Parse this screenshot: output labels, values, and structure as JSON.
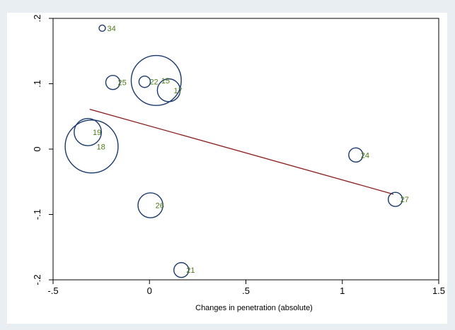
{
  "chart_data": {
    "type": "scatter",
    "title": "",
    "xlabel": "Changes in penetration (absolute)",
    "ylabel": "",
    "xlim": [
      -0.5,
      1.5
    ],
    "ylim": [
      -0.2,
      0.2
    ],
    "xticks": [
      {
        "value": -0.5,
        "label": "-.5"
      },
      {
        "value": 0,
        "label": "0"
      },
      {
        "value": 0.5,
        "label": ".5"
      },
      {
        "value": 1,
        "label": "1"
      },
      {
        "value": 1.5,
        "label": "1.5"
      }
    ],
    "yticks": [
      {
        "value": -0.2,
        "label": "-.2"
      },
      {
        "value": -0.1,
        "label": "-.1"
      },
      {
        "value": 0,
        "label": "0"
      },
      {
        "value": 0.1,
        "label": ".1"
      },
      {
        "value": 0.2,
        "label": ".2"
      }
    ],
    "grid": false,
    "marker_weight_note": "bubble size proportional to weight",
    "points": [
      {
        "label": "34",
        "x": -0.245,
        "y": 0.185,
        "size": 0.2
      },
      {
        "label": "25",
        "x": -0.19,
        "y": 0.102,
        "size": 1.0
      },
      {
        "label": "22",
        "x": -0.025,
        "y": 0.103,
        "size": 0.65
      },
      {
        "label": "15",
        "x": 0.035,
        "y": 0.105,
        "size": 12.5
      },
      {
        "label": "17",
        "x": 0.1,
        "y": 0.09,
        "size": 2.6
      },
      {
        "label": "19",
        "x": -0.32,
        "y": 0.026,
        "size": 3.7
      },
      {
        "label": "18",
        "x": -0.3,
        "y": 0.004,
        "size": 14.0
      },
      {
        "label": "24",
        "x": 1.07,
        "y": -0.009,
        "size": 1.0
      },
      {
        "label": "27",
        "x": 1.275,
        "y": -0.077,
        "size": 1.0
      },
      {
        "label": "26",
        "x": 0.005,
        "y": -0.086,
        "size": 3.1
      },
      {
        "label": "21",
        "x": 0.165,
        "y": -0.185,
        "size": 1.1
      }
    ],
    "fit_line": {
      "x1": -0.31,
      "y1": 0.061,
      "x2": 1.265,
      "y2": -0.069
    },
    "colors": {
      "marker": "#1a3a6b",
      "label": "#4d7a1a",
      "fit_line": "#8b1a1a",
      "background": "#e8eef2",
      "plot_background": "#ffffff"
    }
  }
}
